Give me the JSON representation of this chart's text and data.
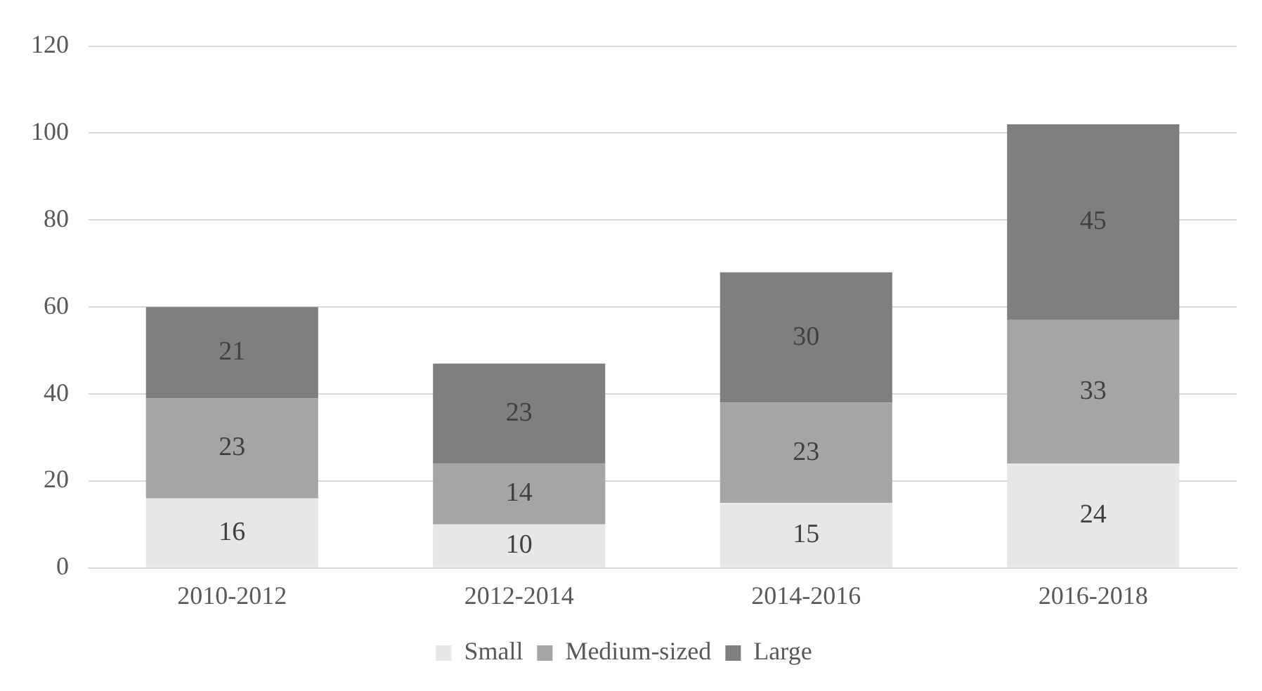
{
  "chart_data": {
    "type": "bar",
    "stacked": true,
    "categories": [
      "2010-2012",
      "2012-2014",
      "2014-2016",
      "2016-2018"
    ],
    "series": [
      {
        "name": "Small",
        "color": "#e7e7e7",
        "values": [
          16,
          10,
          15,
          24
        ]
      },
      {
        "name": "Medium-sized",
        "color": "#a5a5a5",
        "values": [
          23,
          14,
          23,
          33
        ]
      },
      {
        "name": "Large",
        "color": "#7f7f7f",
        "values": [
          21,
          23,
          30,
          45
        ]
      }
    ],
    "ylim": [
      0,
      120
    ],
    "yticks": [
      0,
      20,
      40,
      60,
      80,
      100,
      120
    ],
    "grid": "y",
    "legend": "bottom",
    "data_labels": true
  }
}
